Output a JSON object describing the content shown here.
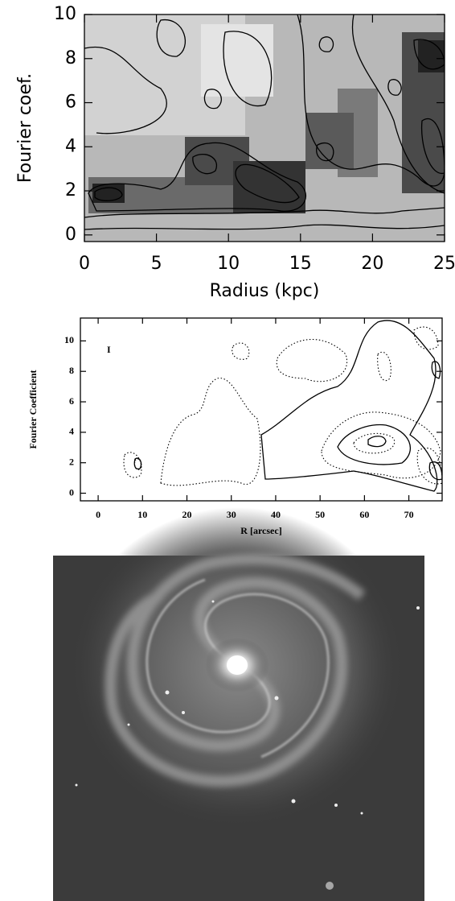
{
  "chart_data": [
    {
      "type": "contour",
      "x_label": "Radius (kpc)",
      "y_label": "Fourier coef.",
      "xlim": [
        0,
        25
      ],
      "xticks": [
        0,
        5,
        10,
        15,
        20,
        25
      ],
      "ylim": [
        -0.3,
        10
      ],
      "yticks": [
        0,
        2,
        4,
        6,
        8,
        10
      ]
    },
    {
      "type": "contour",
      "annotation": "I",
      "x_label": "R [arcsec]",
      "y_label": "Fourier Coefficient",
      "xlim": [
        -4,
        77.5
      ],
      "xticks": [
        0,
        10,
        20,
        30,
        40,
        50,
        60,
        70
      ],
      "ylim": [
        -0.5,
        11.5
      ],
      "yticks": [
        0,
        2,
        4,
        6,
        8,
        10
      ]
    }
  ]
}
